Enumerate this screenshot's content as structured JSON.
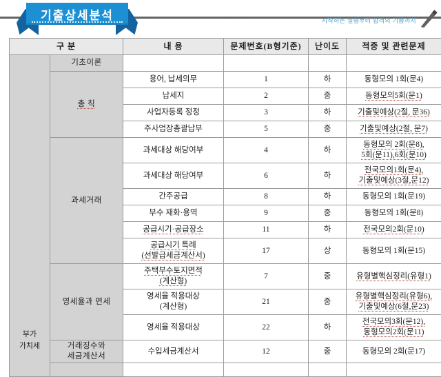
{
  "banner": {
    "title": "기출상세분석",
    "tagline": "시작하는 설렘부터 합격의 기쁨까지",
    "ribbon_color": "#1d8fd3",
    "ribbon_fold_color": "#14639f",
    "tagline_color": "#4d9fce",
    "rule_color": "#4b4b4b"
  },
  "table": {
    "headers": {
      "category": "구 분",
      "content": "내 용",
      "number": "문제번호(B형기준)",
      "difficulty": "난이도",
      "related": "적중 및 관련문제"
    },
    "side_label": "부가\n가치세",
    "header_bg": "#e9e9e9",
    "category_bg": "#d3d3d3",
    "border_color": "#9b9b9b",
    "groups": [
      {
        "category": "기초이론",
        "rows": [
          {
            "content": "",
            "number": "",
            "difficulty": "",
            "related": ""
          }
        ]
      },
      {
        "category": "총 칙",
        "category_underline": true,
        "rows": [
          {
            "content": "용어, 납세의무",
            "number": "1",
            "difficulty": "하",
            "related": "동형모의 1회(문4)"
          },
          {
            "content": "납세지",
            "number": "2",
            "difficulty": "중",
            "related": "동형모의5회(문1)",
            "related_underline": true
          },
          {
            "content": "사업자등록 정정",
            "number": "3",
            "difficulty": "하",
            "related": "기출및예상(2절, 문36)",
            "related_underline": true
          },
          {
            "content": "주사업장총괄납부",
            "number": "5",
            "difficulty": "중",
            "related": "기출및예상(2절, 문7)",
            "related_underline": true
          }
        ]
      },
      {
        "category": "과세거래",
        "rows": [
          {
            "content": "과세대상 해당여부",
            "number": "4",
            "difficulty": "하",
            "related": "동형모의 2회(문8),\n5회(문11),6회(문10)",
            "related_underline": true
          },
          {
            "content": "과세대상 해당여부",
            "number": "6",
            "difficulty": "하",
            "related": "전국모의1회(문4),\n기출및예상(3절,문12)",
            "related_underline": true
          },
          {
            "content": "간주공급",
            "number": "8",
            "difficulty": "하",
            "related": "동형모의 1회(문19)"
          },
          {
            "content": "부수 재화·용역",
            "number": "9",
            "difficulty": "중",
            "related": "동형모의 1회(문8)"
          },
          {
            "content": "공급시기·공급장소",
            "number": "11",
            "difficulty": "하",
            "related": "전국모의2회(문10)",
            "content_underline": true,
            "related_underline": true
          },
          {
            "content": "공급시기 특례\n(선발급세금계산서)",
            "number": "17",
            "difficulty": "상",
            "related": "동형모의 1회(문15)",
            "content_underline": true
          }
        ]
      },
      {
        "category": "영세율과 면세",
        "rows": [
          {
            "content": "주택부수토지면적\n(계산형)",
            "number": "7",
            "difficulty": "중",
            "related": "유형별핵심정리(유형1)",
            "content_underline": true,
            "related_underline": true
          },
          {
            "content": "영세율 적용대상\n(계산형)",
            "number": "21",
            "difficulty": "중",
            "related": "유형별핵심정리(유형6),\n기출및예상(6절,문23)",
            "related_underline": true
          },
          {
            "content": "영세율 적용대상",
            "number": "22",
            "difficulty": "하",
            "related": "전국모의3회(문12),\n동형모의2회(문11)",
            "related_underline": true
          }
        ]
      },
      {
        "category": "거래징수와\n세금계산서",
        "rows": [
          {
            "content": "수입세금계산서",
            "number": "12",
            "difficulty": "중",
            "related": "동형모의 2회(문17)"
          }
        ]
      },
      {
        "category": "",
        "rows": [
          {
            "content": "",
            "number": "",
            "difficulty": "",
            "related": "",
            "partial": true
          }
        ]
      }
    ]
  }
}
